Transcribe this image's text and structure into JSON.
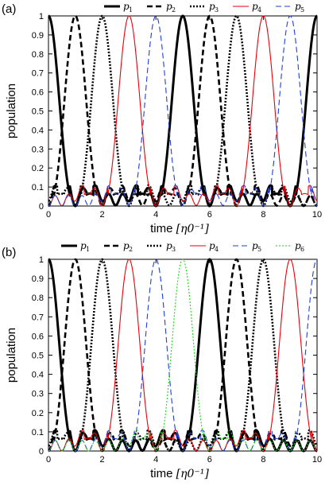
{
  "chart_data": [
    {
      "type": "line",
      "panel_label": "(a)",
      "xlabel": "time",
      "xunit": "[η0⁻¹]",
      "ylabel": "population",
      "xlim": [
        0,
        10
      ],
      "ylim": [
        0,
        1
      ],
      "xticks": [
        "0",
        "2",
        "4",
        "6",
        "8",
        "10"
      ],
      "yticks": [
        "0",
        "0.1",
        "0.2",
        "0.3",
        "0.4",
        "0.5",
        "0.6",
        "0.7",
        "0.8",
        "0.9",
        "1"
      ],
      "period": 5,
      "series": [
        {
          "name": "p1",
          "label_main": "p",
          "label_sub": "1",
          "color": "#000000",
          "style": "solid",
          "peaks": [
            0,
            5,
            10
          ]
        },
        {
          "name": "p2",
          "label_main": "p",
          "label_sub": "2",
          "color": "#000000",
          "style": "dashed",
          "peaks": [
            1,
            6
          ]
        },
        {
          "name": "p3",
          "label_main": "p",
          "label_sub": "3",
          "color": "#000000",
          "style": "dotted",
          "peaks": [
            2,
            7
          ]
        },
        {
          "name": "p4",
          "label_main": "p",
          "label_sub": "4",
          "color": "#e8000b",
          "style": "solid",
          "peaks": [
            3,
            8
          ]
        },
        {
          "name": "p5",
          "label_main": "p",
          "label_sub": "5",
          "color": "#1f3fd9",
          "style": "dashed",
          "peaks": [
            4,
            9
          ]
        }
      ]
    },
    {
      "type": "line",
      "panel_label": "(b)",
      "xlabel": "time",
      "xunit": "[η0⁻¹]",
      "ylabel": "population",
      "xlim": [
        0,
        10
      ],
      "ylim": [
        0,
        1
      ],
      "xticks": [
        "0",
        "2",
        "4",
        "6",
        "8",
        "10"
      ],
      "yticks": [
        "0",
        "0.1",
        "0.2",
        "0.3",
        "0.4",
        "0.5",
        "0.6",
        "0.7",
        "0.8",
        "0.9",
        "1"
      ],
      "period": 6,
      "series": [
        {
          "name": "p1",
          "label_main": "p",
          "label_sub": "1",
          "color": "#000000",
          "style": "solid",
          "peaks": [
            0,
            6
          ]
        },
        {
          "name": "p2",
          "label_main": "p",
          "label_sub": "2",
          "color": "#000000",
          "style": "dashed",
          "peaks": [
            1,
            7
          ]
        },
        {
          "name": "p3",
          "label_main": "p",
          "label_sub": "3",
          "color": "#000000",
          "style": "dotted",
          "peaks": [
            2,
            8
          ]
        },
        {
          "name": "p4",
          "label_main": "p",
          "label_sub": "4",
          "color": "#e8000b",
          "style": "solid",
          "peaks": [
            3,
            9
          ]
        },
        {
          "name": "p5",
          "label_main": "p",
          "label_sub": "5",
          "color": "#1f3fd9",
          "style": "dashed",
          "peaks": [
            4,
            10
          ]
        },
        {
          "name": "p6",
          "label_main": "p",
          "label_sub": "6",
          "color": "#19d419",
          "style": "dotted",
          "peaks": [
            5
          ]
        }
      ]
    }
  ]
}
